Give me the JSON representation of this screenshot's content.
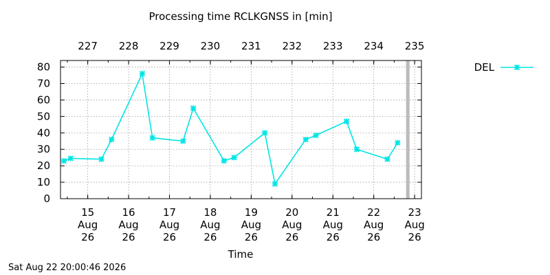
{
  "chart_data": {
    "type": "line",
    "title": "Processing time RCLKGNSS in [min]",
    "xlabel": "Time",
    "ylabel": "",
    "ylim": [
      0,
      84
    ],
    "yticks": [
      0,
      10,
      20,
      30,
      40,
      50,
      60,
      70,
      80
    ],
    "xlim": [
      "2026-08-14T08:00",
      "2026-08-23T04:00"
    ],
    "x_ticks_bottom": [
      {
        "date": "2026-08-15",
        "day": "15",
        "month": "Aug",
        "year": "26"
      },
      {
        "date": "2026-08-16",
        "day": "16",
        "month": "Aug",
        "year": "26"
      },
      {
        "date": "2026-08-17",
        "day": "17",
        "month": "Aug",
        "year": "26"
      },
      {
        "date": "2026-08-18",
        "day": "18",
        "month": "Aug",
        "year": "26"
      },
      {
        "date": "2026-08-19",
        "day": "19",
        "month": "Aug",
        "year": "26"
      },
      {
        "date": "2026-08-20",
        "day": "20",
        "month": "Aug",
        "year": "26"
      },
      {
        "date": "2026-08-21",
        "day": "21",
        "month": "Aug",
        "year": "26"
      },
      {
        "date": "2026-08-22",
        "day": "22",
        "month": "Aug",
        "year": "26"
      },
      {
        "date": "2026-08-23",
        "day": "23",
        "month": "Aug",
        "year": "26"
      }
    ],
    "x_ticks_top": [
      {
        "date": "2026-08-15",
        "label": "227"
      },
      {
        "date": "2026-08-16",
        "label": "228"
      },
      {
        "date": "2026-08-17",
        "label": "229"
      },
      {
        "date": "2026-08-18",
        "label": "230"
      },
      {
        "date": "2026-08-19",
        "label": "231"
      },
      {
        "date": "2026-08-20",
        "label": "232"
      },
      {
        "date": "2026-08-21",
        "label": "233"
      },
      {
        "date": "2026-08-22",
        "label": "234"
      },
      {
        "date": "2026-08-23",
        "label": "235"
      }
    ],
    "grid": true,
    "legend_position": "top-right",
    "series": [
      {
        "name": "DEL",
        "color": "#00e5e5",
        "marker": "x-star",
        "x": [
          "2026-08-14T10:00",
          "2026-08-14T14:00",
          "2026-08-15T08:00",
          "2026-08-15T14:00",
          "2026-08-16T08:00",
          "2026-08-16T14:00",
          "2026-08-17T08:00",
          "2026-08-17T14:00",
          "2026-08-18T08:00",
          "2026-08-18T14:00",
          "2026-08-19T08:00",
          "2026-08-19T14:00",
          "2026-08-20T08:00",
          "2026-08-20T14:00",
          "2026-08-21T08:00",
          "2026-08-21T14:00",
          "2026-08-22T08:00",
          "2026-08-22T14:00"
        ],
        "values": [
          23,
          24.5,
          24,
          36,
          76,
          37,
          35,
          55,
          23,
          25,
          40,
          9,
          36,
          38.5,
          47,
          30,
          24,
          34
        ]
      }
    ],
    "now_marker": {
      "date": "2026-08-22T20:00",
      "color": "#bbbbbb"
    }
  },
  "footer": {
    "timestamp": "Sat Aug 22 20:00:46 2026"
  }
}
